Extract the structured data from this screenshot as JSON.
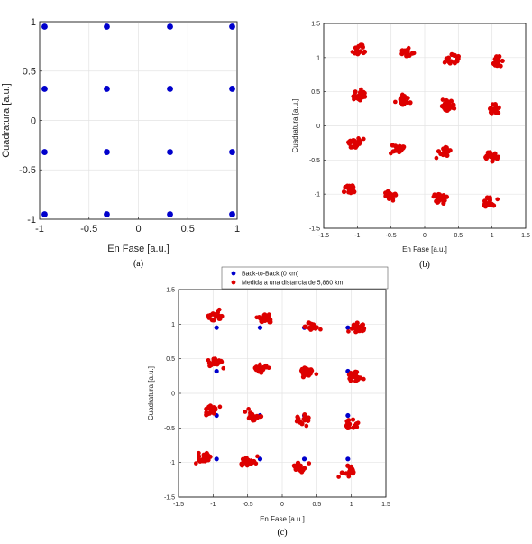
{
  "chart_data": [
    {
      "type": "scatter",
      "caption": "(a)",
      "xlabel": "En Fase [a.u.]",
      "ylabel": "Cuadratura [a.u.]",
      "xlim": [
        -1,
        1
      ],
      "ylim": [
        -1,
        1
      ],
      "xticks": [
        "-1",
        "-0.5",
        "0",
        "0.5",
        "1"
      ],
      "yticks": [
        "-1",
        "-0.5",
        "0",
        "0.5",
        "1"
      ],
      "grid": true,
      "series": [
        {
          "color": "#0000cc",
          "points": [
            [
              -0.95,
              0.95
            ],
            [
              -0.32,
              0.95
            ],
            [
              0.32,
              0.95
            ],
            [
              0.95,
              0.95
            ],
            [
              -0.95,
              0.32
            ],
            [
              -0.32,
              0.32
            ],
            [
              0.32,
              0.32
            ],
            [
              0.95,
              0.32
            ],
            [
              -0.95,
              -0.32
            ],
            [
              -0.32,
              -0.32
            ],
            [
              0.32,
              -0.32
            ],
            [
              0.95,
              -0.32
            ],
            [
              -0.95,
              -0.95
            ],
            [
              -0.32,
              -0.95
            ],
            [
              0.32,
              -0.95
            ],
            [
              0.95,
              -0.95
            ]
          ]
        }
      ]
    },
    {
      "type": "scatter",
      "caption": "(b)",
      "xlabel": "En Fase [a.u.]",
      "ylabel": "Cuadratura [a.u.]",
      "xlim": [
        -1.5,
        1.5
      ],
      "ylim": [
        -1.5,
        1.5
      ],
      "xticks": [
        "-1.5",
        "-1",
        "-0.5",
        "0",
        "0.5",
        "1",
        "1.5"
      ],
      "yticks": [
        "-1.5",
        "-1",
        "-0.5",
        "0",
        "0.5",
        "1",
        "1.5"
      ],
      "grid": true,
      "series": [
        {
          "color": "#dd0000",
          "clusters": [
            [
              -0.97,
              1.12
            ],
            [
              -0.25,
              1.07
            ],
            [
              0.42,
              0.98
            ],
            [
              1.1,
              0.95
            ],
            [
              -0.97,
              0.44
            ],
            [
              -0.3,
              0.37
            ],
            [
              0.35,
              0.3
            ],
            [
              1.05,
              0.25
            ],
            [
              -1.05,
              -0.25
            ],
            [
              -0.4,
              -0.32
            ],
            [
              0.3,
              -0.38
            ],
            [
              1.0,
              -0.45
            ],
            [
              -1.13,
              -0.93
            ],
            [
              -0.5,
              -1.0
            ],
            [
              0.25,
              -1.07
            ],
            [
              0.95,
              -1.12
            ]
          ]
        }
      ]
    },
    {
      "type": "scatter",
      "caption": "(c)",
      "xlabel": "En Fase [a.u.]",
      "ylabel": "Cuadratura [a.u.]",
      "xlim": [
        -1.5,
        1.5
      ],
      "ylim": [
        -1.5,
        1.5
      ],
      "xticks": [
        "-1.5",
        "-1",
        "-0.5",
        "0",
        "0.5",
        "1",
        "1.5"
      ],
      "yticks": [
        "-1.5",
        "-1",
        "-0.5",
        "0",
        "0.5",
        "1",
        "1.5"
      ],
      "grid": true,
      "legend": {
        "placement": "top",
        "entries": [
          "Back-to-Back (0 km)",
          "Medida a una distancia de 5,860 km"
        ]
      },
      "series": [
        {
          "name": "Back-to-Back (0 km)",
          "color": "#0000cc",
          "points": [
            [
              -0.95,
              0.95
            ],
            [
              -0.32,
              0.95
            ],
            [
              0.32,
              0.95
            ],
            [
              0.95,
              0.95
            ],
            [
              -0.95,
              0.32
            ],
            [
              -0.32,
              0.32
            ],
            [
              0.32,
              0.32
            ],
            [
              0.95,
              0.32
            ],
            [
              -0.95,
              -0.32
            ],
            [
              -0.32,
              -0.32
            ],
            [
              0.32,
              -0.32
            ],
            [
              0.95,
              -0.32
            ],
            [
              -0.95,
              -0.95
            ],
            [
              -0.32,
              -0.95
            ],
            [
              0.32,
              -0.95
            ],
            [
              0.95,
              -0.95
            ]
          ]
        },
        {
          "name": "Medida a una distancia de 5,860 km",
          "color": "#dd0000",
          "clusters": [
            [
              -0.97,
              1.12
            ],
            [
              -0.25,
              1.07
            ],
            [
              0.42,
              0.98
            ],
            [
              1.1,
              0.95
            ],
            [
              -0.97,
              0.44
            ],
            [
              -0.3,
              0.37
            ],
            [
              0.35,
              0.3
            ],
            [
              1.05,
              0.25
            ],
            [
              -1.05,
              -0.25
            ],
            [
              -0.4,
              -0.32
            ],
            [
              0.3,
              -0.38
            ],
            [
              1.0,
              -0.45
            ],
            [
              -1.13,
              -0.93
            ],
            [
              -0.5,
              -1.0
            ],
            [
              0.25,
              -1.07
            ],
            [
              0.95,
              -1.12
            ]
          ]
        }
      ]
    }
  ]
}
